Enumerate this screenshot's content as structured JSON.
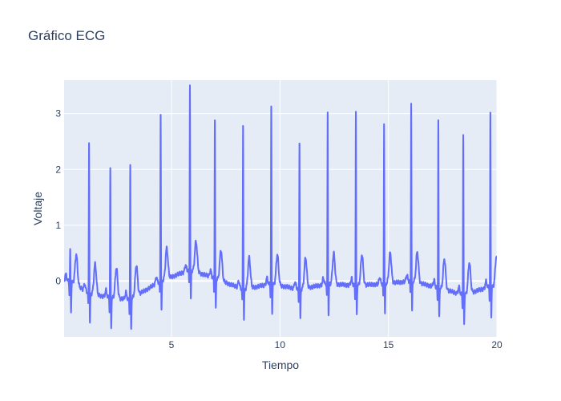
{
  "chart_data": {
    "type": "line",
    "title": "Gráfico ECG",
    "xlabel": "Tiempo",
    "ylabel": "Voltaje",
    "xlim": [
      0.05,
      20
    ],
    "ylim": [
      -1.0,
      3.6
    ],
    "x_ticks": [
      5,
      10,
      15,
      20
    ],
    "y_ticks": [
      0,
      1,
      2,
      3
    ],
    "grid": true,
    "legend": "none",
    "colors": {
      "line": "#636efa",
      "plot_bg": "#e5ecf6",
      "grid": "#ffffff",
      "text": "#2a3f5f"
    },
    "beats": [
      {
        "t": 0.33,
        "r": 0.55,
        "base": 0.0
      },
      {
        "t": 1.2,
        "r": 2.75,
        "base": -0.22
      },
      {
        "t": 2.18,
        "r": 2.35,
        "base": -0.3
      },
      {
        "t": 3.1,
        "r": 2.45,
        "base": -0.33
      },
      {
        "t": 4.5,
        "r": 3.05,
        "base": 0.0
      },
      {
        "t": 5.85,
        "r": 3.35,
        "base": 0.2
      },
      {
        "t": 7.0,
        "r": 2.9,
        "base": 0.05
      },
      {
        "t": 8.3,
        "r": 3.0,
        "base": -0.15
      },
      {
        "t": 9.6,
        "r": 3.2,
        "base": -0.05
      },
      {
        "t": 10.9,
        "r": 2.7,
        "base": -0.15
      },
      {
        "t": 12.2,
        "r": 3.12,
        "base": -0.05
      },
      {
        "t": 13.5,
        "r": 3.15,
        "base": -0.08
      },
      {
        "t": 14.8,
        "r": 2.95,
        "base": -0.05
      },
      {
        "t": 16.05,
        "r": 3.22,
        "base": 0.0
      },
      {
        "t": 17.3,
        "r": 3.05,
        "base": -0.12
      },
      {
        "t": 18.45,
        "r": 2.85,
        "base": -0.25
      },
      {
        "t": 19.7,
        "r": 3.15,
        "base": -0.1
      }
    ]
  }
}
